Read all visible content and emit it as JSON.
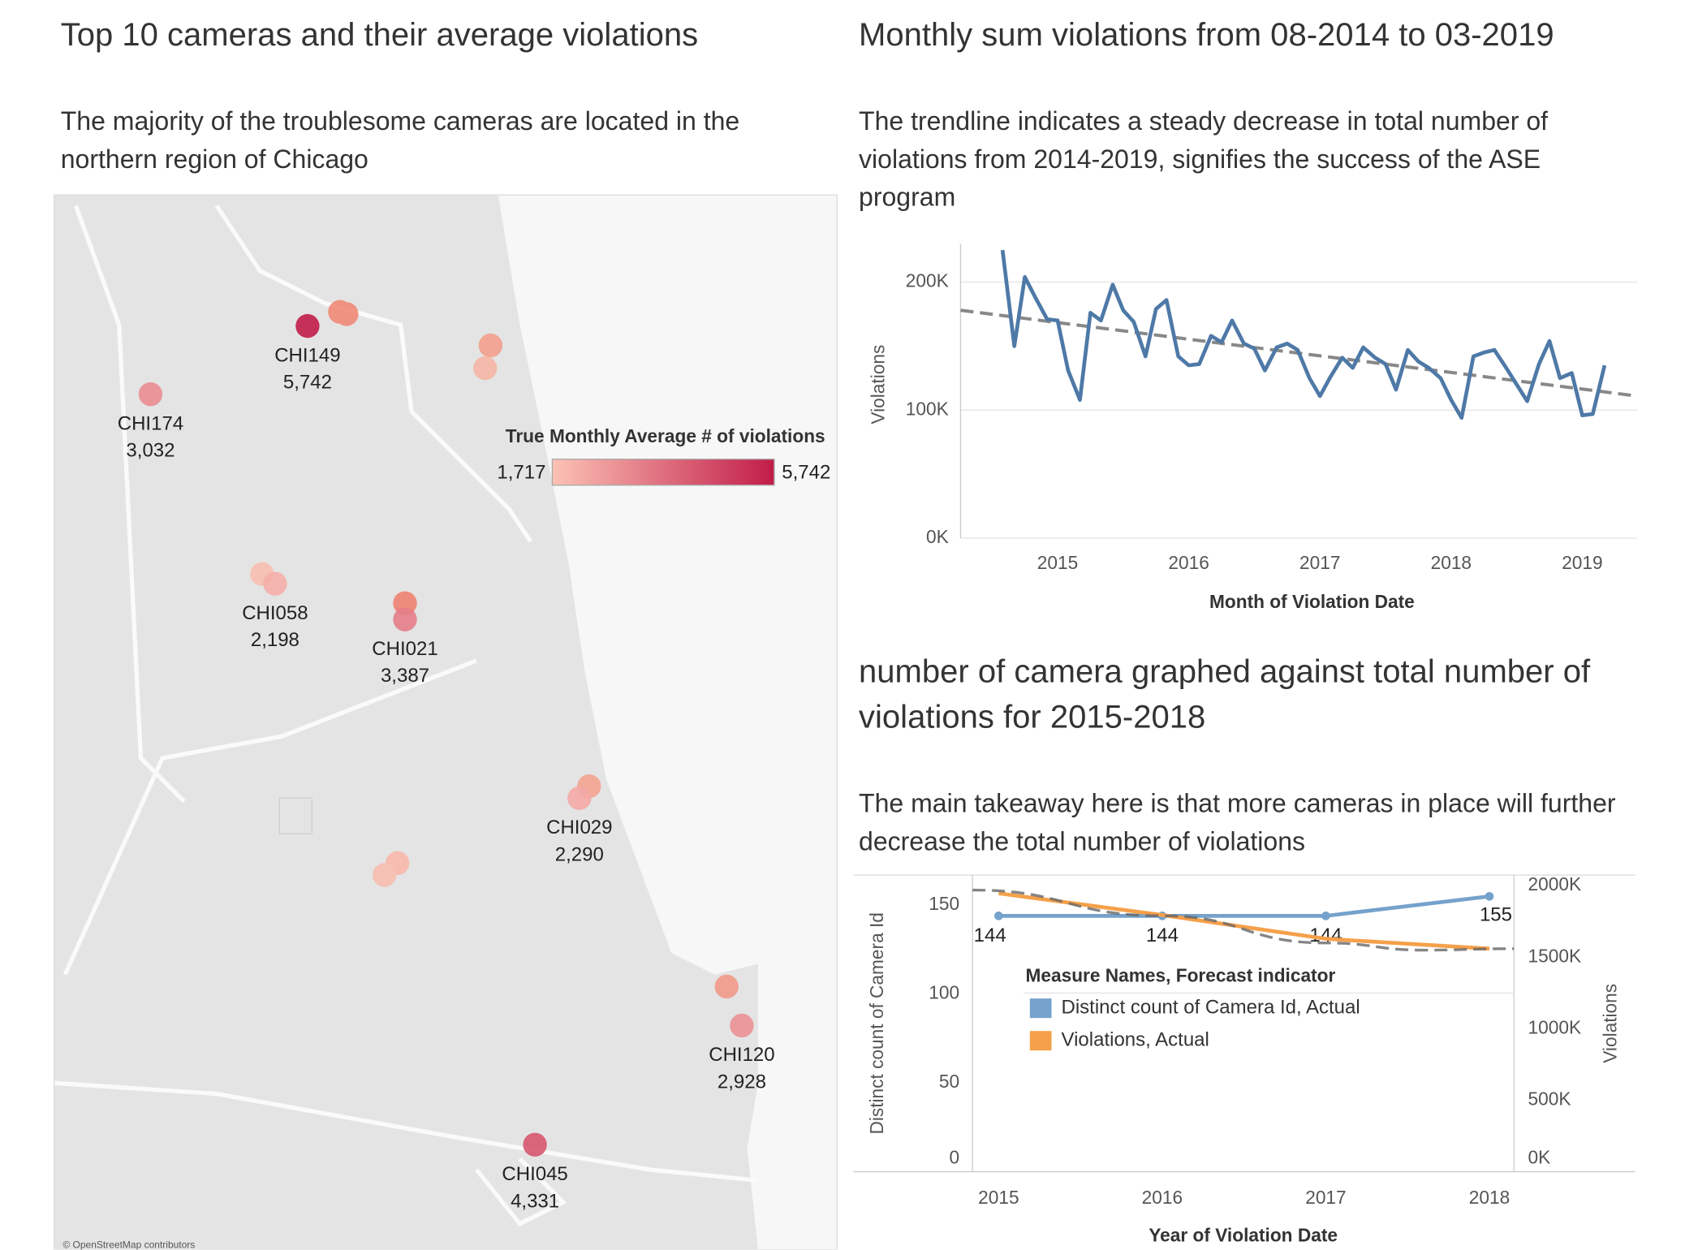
{
  "chart_data": [
    {
      "type": "map",
      "title": "Top 10 cameras and their average violations",
      "subtitle": "The majority of the troublesome cameras are located in the northern region of Chicago",
      "categories": [
        "CHI149",
        "CHI174",
        "CHI058",
        "CHI021",
        "CHI029",
        "CHI120",
        "CHI045"
      ],
      "values": [
        5742,
        3032,
        2198,
        3387,
        2290,
        2928,
        4331
      ],
      "value_labels": [
        "5,742",
        "3,032",
        "2,198",
        "3,387",
        "2,290",
        "2,928",
        "4,331"
      ],
      "color_scale": {
        "title": "True Monthly Average # of violations",
        "range": [
          {
            "value": 1717,
            "label": "1,717"
          },
          {
            "value": 5742,
            "label": "5,742"
          }
        ],
        "colors": [
          "#fcc2b5",
          "#c11c48"
        ]
      },
      "attribution": "© OpenStreetMap contributors"
    },
    {
      "type": "line",
      "title": "Monthly sum violations from 08-2014 to 03-2019",
      "subtitle": "The trendline indicates a steady decrease in total number of violations from 2014-2019, signifies the success of the ASE program",
      "x_label": "Month of Violation Date",
      "y_label": "Violations",
      "x": [
        2014.58,
        2014.67,
        2014.75,
        2014.83,
        2014.92,
        2015.0,
        2015.08,
        2015.17,
        2015.25,
        2015.33,
        2015.42,
        2015.5,
        2015.58,
        2015.67,
        2015.75,
        2015.83,
        2015.92,
        2016.0,
        2016.08,
        2016.17,
        2016.25,
        2016.33,
        2016.42,
        2016.5,
        2016.58,
        2016.67,
        2016.75,
        2016.83,
        2016.92,
        2017.0,
        2017.08,
        2017.17,
        2017.25,
        2017.33,
        2017.42,
        2017.5,
        2017.58,
        2017.67,
        2017.75,
        2017.83,
        2017.92,
        2018.0,
        2018.08,
        2018.17,
        2018.25,
        2018.33,
        2018.42,
        2018.5,
        2018.58,
        2018.67,
        2018.75,
        2018.83,
        2018.92,
        2019.0,
        2019.08,
        2019.17
      ],
      "series": [
        {
          "name": "Violations",
          "color": "#4e79a7",
          "values": [
            225000,
            150000,
            204000,
            188000,
            171000,
            170000,
            131000,
            108000,
            176000,
            170000,
            198000,
            178000,
            169000,
            142000,
            179000,
            186000,
            142000,
            135000,
            136000,
            158000,
            153000,
            170000,
            152000,
            148000,
            131000,
            149000,
            152000,
            147000,
            125000,
            111000,
            126000,
            141000,
            133000,
            149000,
            141000,
            136000,
            116000,
            147000,
            138000,
            133000,
            125000,
            108000,
            94000,
            142000,
            145000,
            147000,
            133000,
            120000,
            107000,
            136000,
            154000,
            125000,
            129000,
            96000,
            97000,
            135000
          ]
        }
      ],
      "trendline": {
        "x": [
          2014.26,
          2019.42
        ],
        "values": [
          178000,
          111000
        ],
        "color": "#888888"
      },
      "xlim": [
        2014.26,
        2019.42
      ],
      "xticks": [
        2015,
        2016,
        2017,
        2018,
        2019
      ],
      "ylim": [
        0,
        230000
      ],
      "yticks": [
        {
          "value": 0,
          "label": "0K"
        },
        {
          "value": 100000,
          "label": "100K"
        },
        {
          "value": 200000,
          "label": "200K"
        }
      ],
      "grid": true
    },
    {
      "type": "combo",
      "title": "number of camera graphed against total number of violations for 2015-2018",
      "subtitle": "The main takeaway here is that more cameras in place will further decrease the total number of violations",
      "x_label": "Year of Violation Date",
      "y_label": "Distinct count of Camera Id",
      "y2_label": "Violations",
      "legend_title": "Measure Names, Forecast indicator",
      "x": [
        2015,
        2016,
        2017,
        2018
      ],
      "series": [
        {
          "name": "Distinct count of Camera Id, Actual",
          "color": "#75a2cc",
          "values": [
            144,
            144,
            144,
            155
          ]
        },
        {
          "name": "Violations, Actual",
          "color": "#f5a04a",
          "axis": "y2",
          "values": [
            1947000,
            1795000,
            1629000,
            1560000
          ]
        }
      ],
      "trendline": {
        "x": [
          2014.84,
          2016,
          2017,
          2017.6,
          2018.15
        ],
        "values": [
          1970000,
          1790000,
          1600000,
          1550000,
          1560000
        ],
        "color": "#888888"
      },
      "xlim": [
        2014.84,
        2018.15
      ],
      "xticks": [
        2015,
        2016,
        2017,
        2018
      ],
      "ylim": [
        0,
        167
      ],
      "yticks": [
        0,
        50,
        100,
        150
      ],
      "y2lim": [
        0,
        2075000
      ],
      "y2ticks": [
        {
          "value": 0,
          "label": "0K"
        },
        {
          "value": 500000,
          "label": "500K"
        },
        {
          "value": 1000000,
          "label": "1000K"
        },
        {
          "value": 1500000,
          "label": "1500K"
        },
        {
          "value": 2000000,
          "label": "2000K"
        }
      ]
    }
  ]
}
